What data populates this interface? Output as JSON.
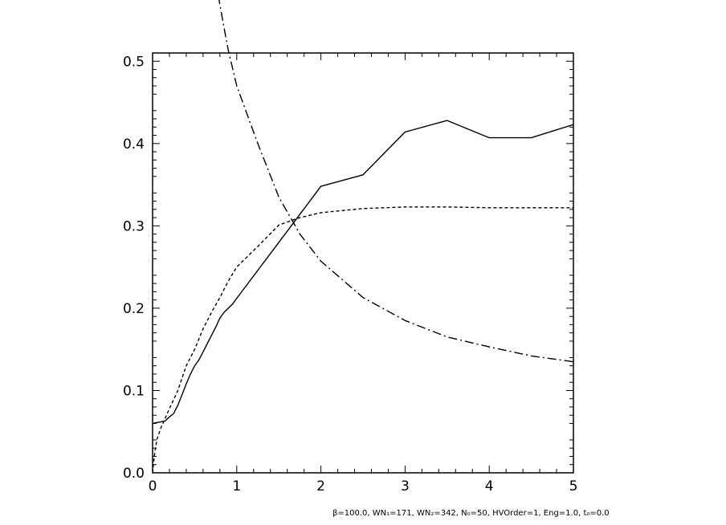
{
  "chart_data": {
    "type": "line",
    "title": "",
    "xlabel": "",
    "ylabel": "",
    "xlim": [
      0,
      5
    ],
    "ylim": [
      0,
      0.51
    ],
    "x_ticks": [
      0,
      1,
      2,
      3,
      4,
      5
    ],
    "y_ticks": [
      0.0,
      0.1,
      0.2,
      0.3,
      0.4,
      0.5
    ],
    "x_tick_labels": [
      "0",
      "1",
      "2",
      "3",
      "4",
      "5"
    ],
    "y_tick_labels": [
      "0.0",
      "0.1",
      "0.2",
      "0.3",
      "0.4",
      "0.5"
    ],
    "grid": false,
    "legend": "none",
    "series": [
      {
        "style": "solid",
        "points": [
          [
            0,
            0.06
          ],
          [
            0.05,
            0.061
          ],
          [
            0.1,
            0.062
          ],
          [
            0.15,
            0.063
          ],
          [
            0.2,
            0.068
          ],
          [
            0.25,
            0.072
          ],
          [
            0.3,
            0.082
          ],
          [
            0.35,
            0.095
          ],
          [
            0.4,
            0.108
          ],
          [
            0.45,
            0.12
          ],
          [
            0.5,
            0.13
          ],
          [
            0.55,
            0.137
          ],
          [
            0.6,
            0.147
          ],
          [
            0.65,
            0.157
          ],
          [
            0.7,
            0.167
          ],
          [
            0.75,
            0.177
          ],
          [
            0.8,
            0.188
          ],
          [
            0.85,
            0.195
          ],
          [
            0.9,
            0.2
          ],
          [
            0.95,
            0.205
          ],
          [
            1.0,
            0.212
          ],
          [
            1.5,
            0.28
          ],
          [
            2.0,
            0.348
          ],
          [
            2.5,
            0.362
          ],
          [
            3.0,
            0.414
          ],
          [
            3.5,
            0.428
          ],
          [
            4.0,
            0.407
          ],
          [
            4.5,
            0.407
          ],
          [
            5.0,
            0.423
          ]
        ]
      },
      {
        "style": "dashed",
        "points": [
          [
            0,
            0.0
          ],
          [
            0.02,
            0.02
          ],
          [
            0.05,
            0.04
          ],
          [
            0.1,
            0.055
          ],
          [
            0.2,
            0.078
          ],
          [
            0.3,
            0.1
          ],
          [
            0.4,
            0.13
          ],
          [
            0.5,
            0.15
          ],
          [
            0.6,
            0.175
          ],
          [
            0.7,
            0.195
          ],
          [
            0.8,
            0.213
          ],
          [
            0.9,
            0.233
          ],
          [
            1.0,
            0.25
          ],
          [
            1.25,
            0.275
          ],
          [
            1.5,
            0.301
          ],
          [
            1.75,
            0.31
          ],
          [
            2.0,
            0.316
          ],
          [
            2.5,
            0.321
          ],
          [
            3.0,
            0.323
          ],
          [
            3.5,
            0.323
          ],
          [
            4.0,
            0.322
          ],
          [
            4.5,
            0.322
          ],
          [
            5.0,
            0.322
          ]
        ]
      },
      {
        "style": "dashdot",
        "points": [
          [
            0.78,
            0.58
          ],
          [
            0.85,
            0.54
          ],
          [
            0.9,
            0.513
          ],
          [
            1.0,
            0.47
          ],
          [
            1.25,
            0.4
          ],
          [
            1.5,
            0.335
          ],
          [
            1.75,
            0.29
          ],
          [
            2.0,
            0.257
          ],
          [
            2.5,
            0.213
          ],
          [
            3.0,
            0.185
          ],
          [
            3.5,
            0.165
          ],
          [
            4.0,
            0.153
          ],
          [
            4.5,
            0.142
          ],
          [
            5.0,
            0.135
          ]
        ]
      }
    ]
  },
  "footnote": "β=100.0, WN₁=171, WN₂=342, N₀=50, HVOrder=1, Eng=1.0, t₀=0.0"
}
